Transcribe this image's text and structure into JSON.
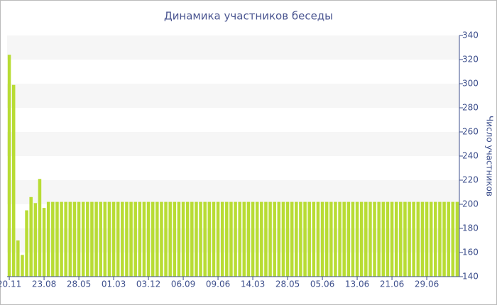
{
  "chart_data": {
    "type": "bar",
    "title": "Динамика участников беседы",
    "y_axis_label": "Число участников",
    "categories": [
      "20.11",
      null,
      null,
      null,
      null,
      null,
      null,
      null,
      "23.08",
      null,
      null,
      null,
      null,
      null,
      null,
      null,
      "28.05",
      null,
      null,
      null,
      null,
      null,
      null,
      null,
      "01.03",
      null,
      null,
      null,
      null,
      null,
      null,
      null,
      "03.12",
      null,
      null,
      null,
      null,
      null,
      null,
      null,
      "06.09",
      null,
      null,
      null,
      null,
      null,
      null,
      null,
      "09.06",
      null,
      null,
      null,
      null,
      null,
      null,
      null,
      "14.03",
      null,
      null,
      null,
      null,
      null,
      null,
      null,
      "28.05",
      null,
      null,
      null,
      null,
      null,
      null,
      null,
      "05.06",
      null,
      null,
      null,
      null,
      null,
      null,
      null,
      "13.06",
      null,
      null,
      null,
      null,
      null,
      null,
      null,
      "21.06",
      null,
      null,
      null,
      null,
      null,
      null,
      null,
      "29.06",
      null,
      null,
      null,
      null,
      null,
      null,
      null
    ],
    "values": [
      324,
      299,
      170,
      158,
      195,
      206,
      201,
      221,
      197,
      202,
      202,
      202,
      202,
      202,
      202,
      202,
      202,
      202,
      202,
      202,
      202,
      202,
      202,
      202,
      202,
      202,
      202,
      202,
      202,
      202,
      202,
      202,
      202,
      202,
      202,
      202,
      202,
      202,
      202,
      202,
      202,
      202,
      202,
      202,
      202,
      202,
      202,
      202,
      202,
      202,
      202,
      202,
      202,
      202,
      202,
      202,
      202,
      202,
      202,
      202,
      202,
      202,
      202,
      202,
      202,
      202,
      202,
      202,
      202,
      202,
      202,
      202,
      202,
      202,
      202,
      202,
      202,
      202,
      202,
      202,
      202,
      202,
      202,
      202,
      202,
      202,
      202,
      202,
      202,
      202,
      202,
      202,
      202,
      202,
      202,
      202,
      202,
      202,
      202,
      202,
      202,
      202,
      202,
      202
    ],
    "color": "#b8dc34",
    "ylim": [
      140,
      340
    ],
    "yticks": [
      140,
      160,
      180,
      200,
      220,
      240,
      260,
      280,
      300,
      320,
      340
    ],
    "y_axis_side": "right",
    "grid": "bands"
  }
}
